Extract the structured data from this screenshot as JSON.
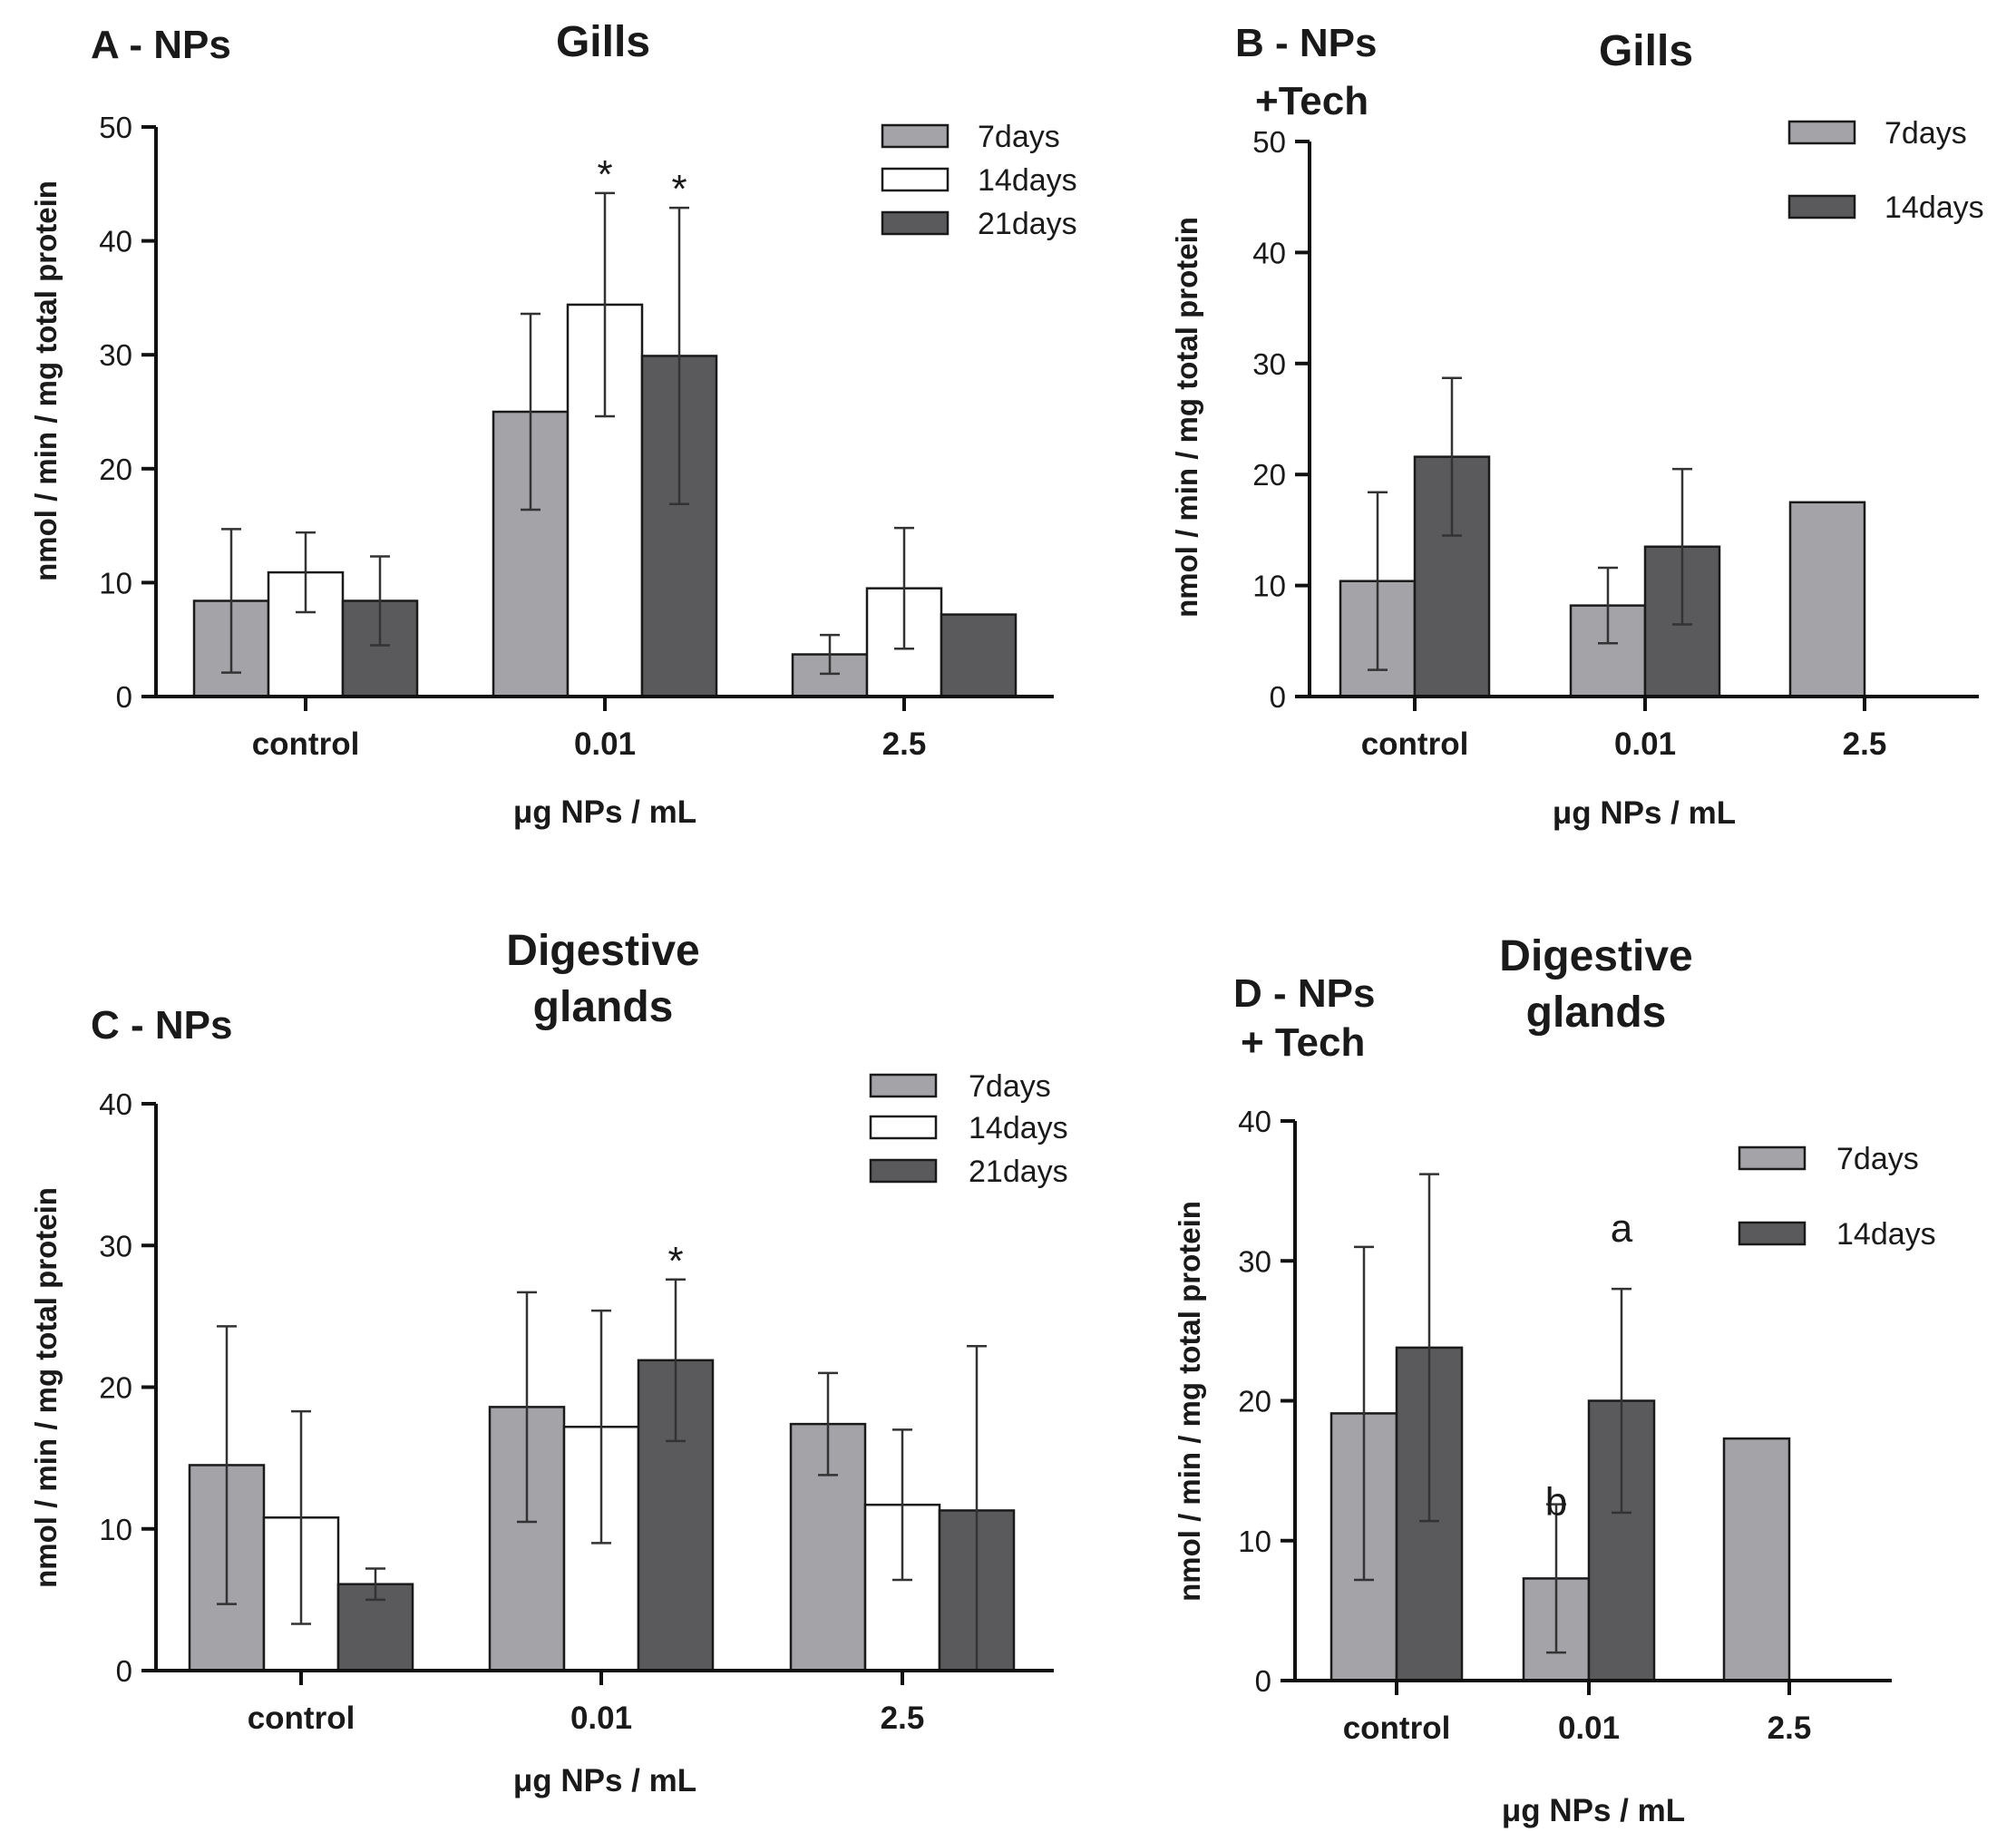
{
  "chart_data": [
    {
      "panel": "A - NPs",
      "title": "Gills",
      "type": "bar",
      "xlabel": "μg NPs / mL",
      "ylabel": "nmol / min / mg total protein",
      "ylim": [
        0,
        50
      ],
      "yticks": [
        0,
        10,
        20,
        30,
        40,
        50
      ],
      "categories": [
        "control",
        "0.01",
        "2.5"
      ],
      "series": [
        {
          "name": "7days",
          "color": "#a3a3a8",
          "values": [
            8.4,
            25.0,
            3.7
          ],
          "errors": [
            6.3,
            8.6,
            1.7
          ]
        },
        {
          "name": "14days",
          "color": "#ffffff",
          "values": [
            10.9,
            34.4,
            9.5
          ],
          "errors": [
            3.5,
            9.8,
            5.3
          ]
        },
        {
          "name": "21days",
          "color": "#5a5a5d",
          "values": [
            8.4,
            29.9,
            7.2
          ],
          "errors": [
            3.9,
            13.0,
            null
          ]
        }
      ],
      "annotations": [
        {
          "text": "*",
          "category": "0.01",
          "series": "14days"
        },
        {
          "text": "*",
          "category": "0.01",
          "series": "21days"
        }
      ]
    },
    {
      "panel": "B - NPs +Tech",
      "title": "Gills",
      "type": "bar",
      "xlabel": "μg NPs / mL",
      "ylabel": "nmol / min / mg total protein",
      "ylim": [
        0,
        50
      ],
      "yticks": [
        0,
        10,
        20,
        30,
        40,
        50
      ],
      "categories": [
        "control",
        "0.01",
        "2.5"
      ],
      "series": [
        {
          "name": "7days",
          "color": "#a3a3a8",
          "values": [
            10.4,
            8.2,
            17.5
          ],
          "errors": [
            8.0,
            3.4,
            null
          ]
        },
        {
          "name": "14days",
          "color": "#5a5a5d",
          "values": [
            21.6,
            13.5,
            null
          ],
          "errors": [
            7.1,
            7.0,
            null
          ]
        }
      ],
      "annotations": []
    },
    {
      "panel": "C - NPs",
      "title": "Digestive glands",
      "type": "bar",
      "xlabel": "μg NPs / mL",
      "ylabel": "nmol / min / mg total protein",
      "ylim": [
        0,
        40
      ],
      "yticks": [
        0,
        10,
        20,
        30,
        40
      ],
      "categories": [
        "control",
        "0.01",
        "2.5"
      ],
      "series": [
        {
          "name": "7days",
          "color": "#a3a3a8",
          "values": [
            14.5,
            18.6,
            17.4
          ],
          "errors": [
            9.8,
            8.1,
            3.6
          ]
        },
        {
          "name": "14days",
          "color": "#ffffff",
          "values": [
            10.8,
            17.2,
            11.7
          ],
          "errors": [
            7.5,
            8.2,
            5.3
          ]
        },
        {
          "name": "21days",
          "color": "#5a5a5d",
          "values": [
            6.1,
            21.9,
            11.3
          ],
          "errors": [
            1.1,
            5.7,
            11.6
          ]
        }
      ],
      "annotations": [
        {
          "text": "*",
          "category": "0.01",
          "series": "21days"
        }
      ]
    },
    {
      "panel": "D - NPs + Tech",
      "title": "Digestive glands",
      "type": "bar",
      "xlabel": "μg NPs / mL",
      "ylabel": "nmol / min / mg total protein",
      "ylim": [
        0,
        40
      ],
      "yticks": [
        0,
        10,
        20,
        30,
        40
      ],
      "categories": [
        "control",
        "0.01",
        "2.5"
      ],
      "series": [
        {
          "name": "7days",
          "color": "#a3a3a8",
          "values": [
            19.1,
            7.3,
            17.3
          ],
          "errors": [
            11.9,
            5.3,
            null
          ]
        },
        {
          "name": "14days",
          "color": "#5a5a5d",
          "values": [
            23.8,
            20.0,
            null
          ],
          "errors": [
            12.4,
            8.0,
            null
          ]
        }
      ],
      "annotations": [
        {
          "text": "b",
          "category": "0.01",
          "series": "7days"
        },
        {
          "text": "a",
          "category": "0.01",
          "series": "14days"
        }
      ]
    }
  ]
}
